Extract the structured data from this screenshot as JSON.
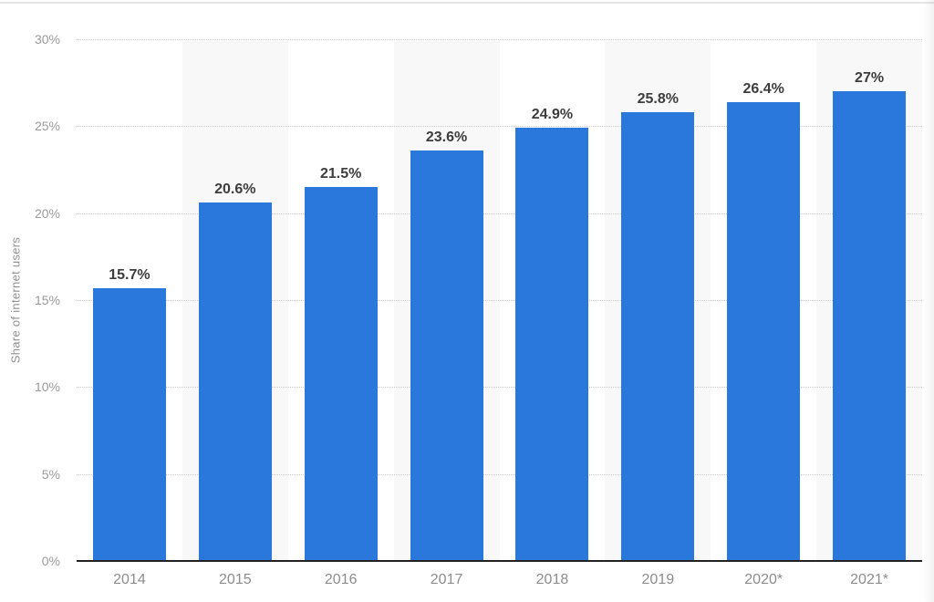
{
  "page": {
    "background": "#ffffff",
    "top_border_color": "#e6e6e6"
  },
  "chart_data": {
    "type": "bar",
    "title": "",
    "xlabel": "",
    "ylabel": "Share of internet users",
    "categories": [
      "2014",
      "2015",
      "2016",
      "2017",
      "2018",
      "2019",
      "2020*",
      "2021*"
    ],
    "values": [
      15.7,
      20.6,
      21.5,
      23.6,
      24.9,
      25.8,
      26.4,
      27
    ],
    "value_labels": [
      "15.7%",
      "20.6%",
      "21.5%",
      "23.6%",
      "24.9%",
      "25.8%",
      "26.4%",
      "27%"
    ],
    "ylim": [
      0,
      30
    ],
    "ytick_interval": 5,
    "ytick_labels": [
      "0%",
      "5%",
      "10%",
      "15%",
      "20%",
      "25%",
      "30%"
    ],
    "grid": "horizontal-dotted",
    "legend": "none",
    "band_pattern": "alternating-columns",
    "colors": {
      "bar": "#2b78dc",
      "column_band": "#f8f8f8",
      "gridline": "#cccccc",
      "axis_line": "#222222",
      "data_label": "#3d3d3d",
      "tick_label": "#9a9a9a",
      "axis_title": "#909090"
    }
  }
}
